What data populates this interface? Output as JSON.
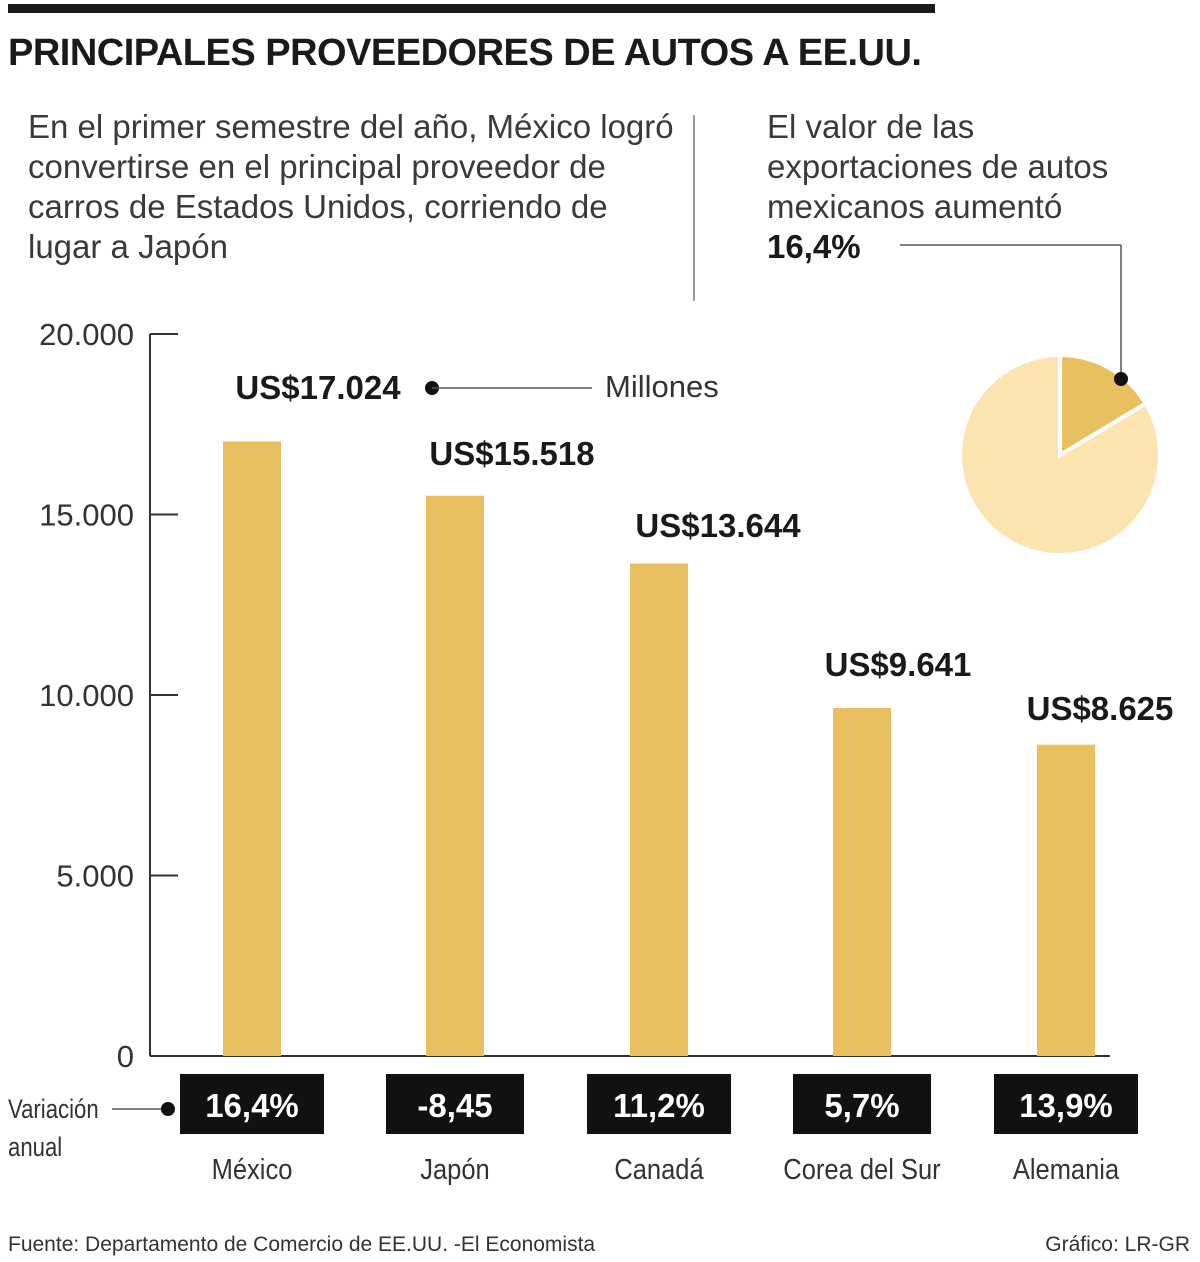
{
  "header": {
    "title": "PRINCIPALES PROVEEDORES DE AUTOS A EE.UU.",
    "intro": "En el primer semestre del año, México logró convertirse en el principal proveedor de carros de Estados Unidos, corriendo de lugar a Japón"
  },
  "pie_note": {
    "text": "El valor de las exportaciones de autos mexicanos aumentó",
    "value_label": "16,4%"
  },
  "chart_data": [
    {
      "type": "bar",
      "categories": [
        "México",
        "Japón",
        "Canadá",
        "Corea del Sur",
        "Alemania"
      ],
      "values": [
        17024,
        15518,
        13644,
        9641,
        8625
      ],
      "value_labels": [
        "US$17.024",
        "US$15.518",
        "US$13.644",
        "US$9.641",
        "US$8.625"
      ],
      "unit_label": "Millones",
      "ylim": [
        0,
        20000
      ],
      "yticks": [
        0,
        5000,
        10000,
        15000,
        20000
      ],
      "ytick_labels": [
        "0",
        "5.000",
        "10.000",
        "15.000",
        "20.000"
      ],
      "grid": false,
      "bar_color": "#e8c05f",
      "annual_change_label": "Variación anual",
      "annual_change": [
        "16,4%",
        "-8,45",
        "11,2%",
        "5,7%",
        "13,9%"
      ]
    },
    {
      "type": "pie",
      "values": [
        16.4,
        83.6
      ],
      "colors": [
        "#e8c05f",
        "#fbe4b0"
      ]
    }
  ],
  "footer": {
    "source": "Fuente: Departamento de Comercio de EE.UU. -El Economista",
    "credit": "Gráfico: LR-GR"
  }
}
